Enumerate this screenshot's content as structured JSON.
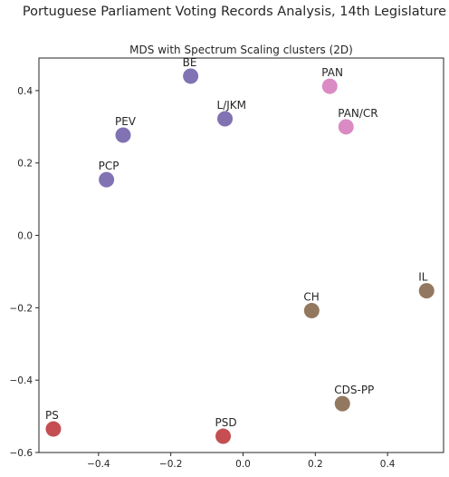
{
  "figure": {
    "suptitle": "Portuguese Parliament Voting Records Analysis, 14th Legislature"
  },
  "chart_data": {
    "type": "scatter",
    "title": "MDS with Spectrum Scaling clusters (2D)",
    "xlabel": "",
    "ylabel": "",
    "xlim": [
      -0.565,
      0.555
    ],
    "ylim": [
      -0.6,
      0.49
    ],
    "xticks": [
      -0.4,
      -0.2,
      0.0,
      0.2,
      0.4
    ],
    "yticks": [
      -0.6,
      -0.4,
      -0.2,
      0.0,
      0.2,
      0.4
    ],
    "xtick_labels": [
      "−0.4",
      "−0.2",
      "0.0",
      "0.2",
      "0.4"
    ],
    "ytick_labels": [
      "−0.6",
      "−0.4",
      "−0.2",
      "0.0",
      "0.2",
      "0.4"
    ],
    "grid": false,
    "legend": "none",
    "cluster_colors": {
      "left": "#8172b3",
      "pan": "#da8bc3",
      "right": "#937860",
      "center": "#c44e52"
    },
    "points": [
      {
        "label": "BE",
        "x": -0.145,
        "y": 0.44,
        "cluster": "left"
      },
      {
        "label": "L/JKM",
        "x": -0.05,
        "y": 0.322,
        "cluster": "left"
      },
      {
        "label": "PEV",
        "x": -0.332,
        "y": 0.277,
        "cluster": "left"
      },
      {
        "label": "PCP",
        "x": -0.378,
        "y": 0.154,
        "cluster": "left"
      },
      {
        "label": "PAN",
        "x": 0.24,
        "y": 0.412,
        "cluster": "pan"
      },
      {
        "label": "PAN/CR",
        "x": 0.285,
        "y": 0.3,
        "cluster": "pan"
      },
      {
        "label": "IL",
        "x": 0.508,
        "y": -0.153,
        "cluster": "right"
      },
      {
        "label": "CH",
        "x": 0.19,
        "y": -0.208,
        "cluster": "right"
      },
      {
        "label": "CDS-PP",
        "x": 0.275,
        "y": -0.465,
        "cluster": "right"
      },
      {
        "label": "PS",
        "x": -0.525,
        "y": -0.535,
        "cluster": "center"
      },
      {
        "label": "PSD",
        "x": -0.055,
        "y": -0.555,
        "cluster": "center"
      }
    ]
  }
}
